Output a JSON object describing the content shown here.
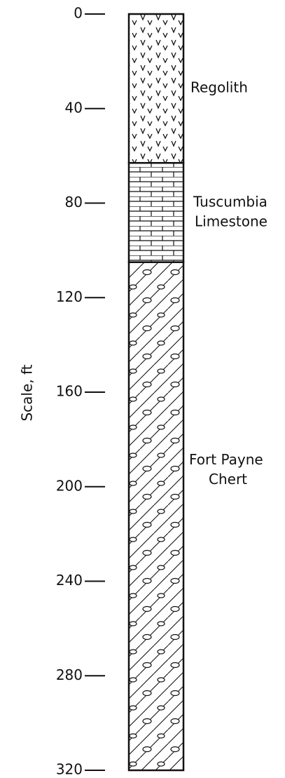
{
  "axis": {
    "label": "Scale, ft",
    "lim": [
      0,
      320
    ],
    "ticks": [
      0,
      40,
      80,
      120,
      160,
      200,
      240,
      280,
      320
    ]
  },
  "layers": [
    {
      "label": [
        "Regolith"
      ],
      "top": 0,
      "bottom": 63,
      "pattern": "regolith"
    },
    {
      "label": [
        "Tuscumbia",
        "Limestone"
      ],
      "top": 63,
      "bottom": 105,
      "pattern": "limestone"
    },
    {
      "label": [
        "Fort Payne",
        "Chert"
      ],
      "top": 105,
      "bottom": 320,
      "pattern": "chert"
    }
  ]
}
